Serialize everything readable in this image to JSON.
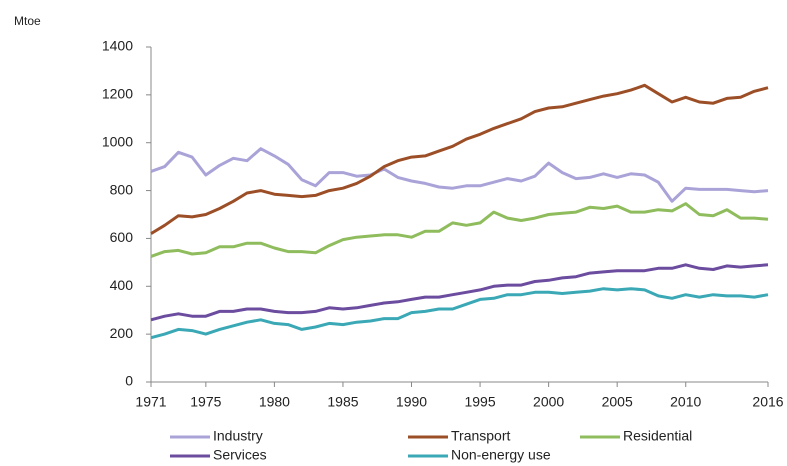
{
  "chart_data": {
    "type": "line",
    "ylabel": "Mtoe",
    "x": [
      1971,
      1972,
      1973,
      1974,
      1975,
      1976,
      1977,
      1978,
      1979,
      1980,
      1981,
      1982,
      1983,
      1984,
      1985,
      1986,
      1987,
      1988,
      1989,
      1990,
      1991,
      1992,
      1993,
      1994,
      1995,
      1996,
      1997,
      1998,
      1999,
      2000,
      2001,
      2002,
      2003,
      2004,
      2005,
      2006,
      2007,
      2008,
      2009,
      2010,
      2011,
      2012,
      2013,
      2014,
      2015,
      2016
    ],
    "series": [
      {
        "name": "Industry",
        "color": "#a9a3d8",
        "values": [
          880,
          900,
          960,
          940,
          865,
          905,
          935,
          925,
          975,
          945,
          910,
          845,
          820,
          875,
          875,
          860,
          865,
          890,
          855,
          840,
          830,
          815,
          810,
          820,
          820,
          835,
          850,
          840,
          860,
          915,
          875,
          850,
          855,
          870,
          855,
          870,
          865,
          835,
          755,
          810,
          805,
          805,
          805,
          800,
          795,
          800
        ]
      },
      {
        "name": "Transport",
        "color": "#9c4f27",
        "values": [
          620,
          655,
          695,
          690,
          700,
          725,
          755,
          790,
          800,
          785,
          780,
          775,
          780,
          800,
          810,
          830,
          860,
          900,
          925,
          940,
          945,
          965,
          985,
          1015,
          1035,
          1060,
          1080,
          1100,
          1130,
          1145,
          1150,
          1165,
          1180,
          1195,
          1205,
          1220,
          1240,
          1205,
          1170,
          1190,
          1170,
          1165,
          1185,
          1190,
          1215,
          1230
        ]
      },
      {
        "name": "Residential",
        "color": "#8fbc5c",
        "values": [
          525,
          545,
          550,
          535,
          540,
          565,
          565,
          580,
          580,
          560,
          545,
          545,
          540,
          570,
          595,
          605,
          610,
          615,
          615,
          605,
          630,
          630,
          665,
          655,
          665,
          710,
          685,
          675,
          685,
          700,
          705,
          710,
          730,
          725,
          735,
          710,
          710,
          720,
          715,
          745,
          700,
          695,
          720,
          685,
          685,
          680
        ]
      },
      {
        "name": "Services",
        "color": "#6b4c9e",
        "values": [
          260,
          275,
          285,
          275,
          275,
          295,
          295,
          305,
          305,
          295,
          290,
          290,
          295,
          310,
          305,
          310,
          320,
          330,
          335,
          345,
          355,
          355,
          365,
          375,
          385,
          400,
          405,
          405,
          420,
          425,
          435,
          440,
          455,
          460,
          465,
          465,
          465,
          475,
          475,
          490,
          475,
          470,
          485,
          480,
          485,
          490
        ]
      },
      {
        "name": "Non-energy use",
        "color": "#3ba8b6",
        "values": [
          185,
          200,
          220,
          215,
          200,
          220,
          235,
          250,
          260,
          245,
          240,
          220,
          230,
          245,
          240,
          250,
          255,
          265,
          265,
          290,
          295,
          305,
          305,
          325,
          345,
          350,
          365,
          365,
          375,
          375,
          370,
          375,
          380,
          390,
          385,
          390,
          385,
          360,
          350,
          365,
          355,
          365,
          360,
          360,
          355,
          365
        ]
      }
    ],
    "xlim": [
      1971,
      2016
    ],
    "xticks": [
      1971,
      1975,
      1980,
      1985,
      1990,
      1995,
      2000,
      2005,
      2010,
      2016
    ],
    "ylim": [
      0,
      1400
    ],
    "yticks": [
      0,
      200,
      400,
      600,
      800,
      1000,
      1200,
      1400
    ],
    "grid": false
  }
}
